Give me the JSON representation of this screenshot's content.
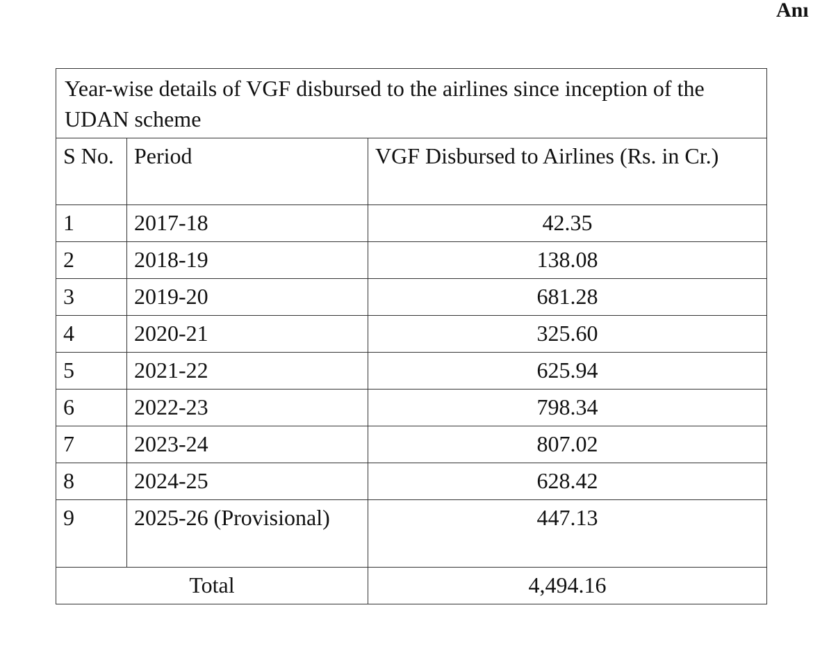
{
  "corner_label": "Anı",
  "table": {
    "title": "Year-wise details of VGF disbursed to the airlines since inception of  the UDAN scheme",
    "headers": {
      "sno": "S No.",
      "period": "Period",
      "vgf": "VGF Disbursed to Airlines (Rs. in Cr.)"
    },
    "rows": [
      {
        "sno": "1",
        "period": "2017-18",
        "vgf": "42.35"
      },
      {
        "sno": "2",
        "period": "2018-19",
        "vgf": "138.08"
      },
      {
        "sno": "3",
        "period": "2019-20",
        "vgf": "681.28"
      },
      {
        "sno": "4",
        "period": "2020-21",
        "vgf": "325.60"
      },
      {
        "sno": "5",
        "period": "2021-22",
        "vgf": "625.94"
      },
      {
        "sno": "6",
        "period": "2022-23",
        "vgf": "798.34"
      },
      {
        "sno": "7",
        "period": "2023-24",
        "vgf": "807.02"
      },
      {
        "sno": "8",
        "period": "2024-25",
        "vgf": "628.42"
      },
      {
        "sno": "9",
        "period": "2025-26 (Provisional)",
        "vgf": "447.13"
      }
    ],
    "total": {
      "label": "Total",
      "value": "4,494.16"
    }
  }
}
